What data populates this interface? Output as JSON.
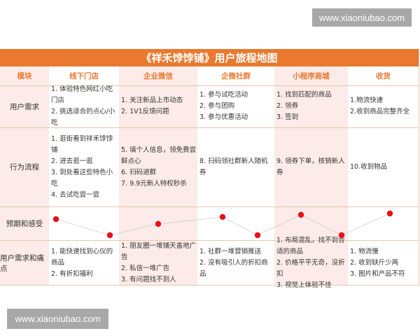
{
  "watermark_top": "www.xiaoniubao.com",
  "watermark_bottom": "www.xiaoniubao.com",
  "title": "《祥禾饽饽铺》用户旅程地图",
  "headers": [
    "模块",
    "线下门店",
    "企业微信",
    "企微社群",
    "小程序商城",
    "收货"
  ],
  "rows": [
    {
      "label": "用户需求",
      "cells": [
        [
          "1. 体验特色网红小吃门店",
          "2. 挑选适合的点心/小吃"
        ],
        [
          "1. 关注新品上市动态",
          "2. 1V1反馈问题"
        ],
        [
          "1. 参与试吃活动",
          "2. 参与团购",
          "3. 参与优惠活动"
        ],
        [
          "1. 找到匹配的商品",
          "2. 领券",
          "3. 签到"
        ],
        [
          "1.物流快速",
          "2.收到商品完整齐全"
        ]
      ]
    },
    {
      "label": "行为流程",
      "cells": [
        [
          "1. 逛街看到祥禾饽饽铺",
          "2. 进去逛一逛",
          "3. 到处看这些特色小吃",
          "4. 去试吃尝一尝"
        ],
        [
          "5. 填个人信息，领免费尝鲜点心",
          "6. 扫码进群",
          "7. 9.9元新人特权秒杀"
        ],
        [
          "8. 扫码领社群新人随机券"
        ],
        [
          "9. 领券下单，核销新人券"
        ],
        [
          "10.收到物品"
        ]
      ]
    },
    {
      "label": "预期和感受",
      "expectation_levels": [
        0.74,
        0,
        0.52,
        0.84,
        0,
        0.94,
        0,
        1.0
      ]
    },
    {
      "label": "用户需求和痛点",
      "cells": [
        [
          "1. 能快速找到心仪的商品",
          "2. 有折扣福利"
        ],
        [
          "1. 朋友圈一堆铺天盖地广告",
          "2. 私信一堆广告",
          "3. 有问题找不到人"
        ],
        [
          "1. 社群一堆营销推送",
          "2. 没有吸引人的折扣商品"
        ],
        [
          "1. 布局混乱，找不到合适的商品",
          "2. 价格平平无奇，没折扣",
          "3. 视觉上体验不佳"
        ],
        [
          "1. 物流慢",
          "2. 收到缺斤少两",
          "3. 图片和产品不符"
        ]
      ]
    }
  ],
  "colors": {
    "accent": "#e9792e",
    "pink": "#fcebe8",
    "point": "#e8101a"
  }
}
